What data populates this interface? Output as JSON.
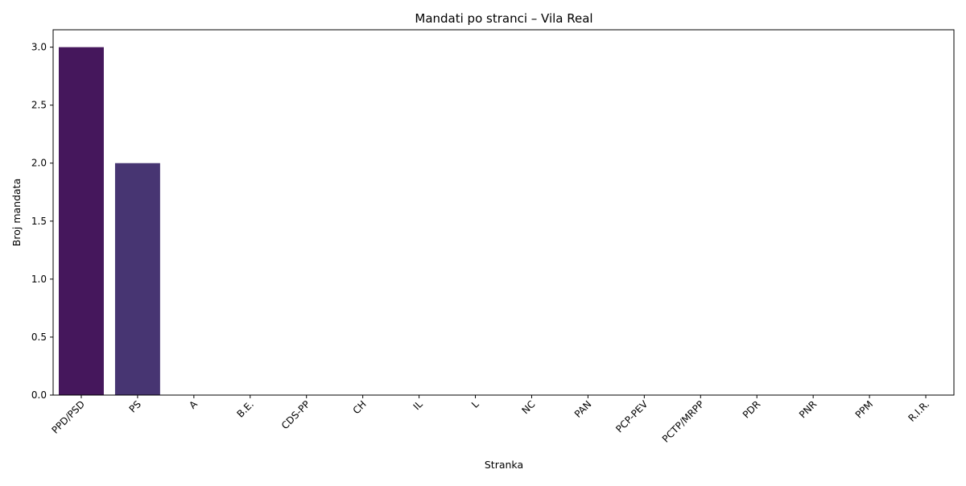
{
  "chart_data": {
    "type": "bar",
    "title": "Mandati po stranci – Vila Real",
    "xlabel": "Stranka",
    "ylabel": "Broj mandata",
    "categories": [
      "PPD/PSD",
      "PS",
      "A",
      "B.E.",
      "CDS-PP",
      "CH",
      "IL",
      "L",
      "NC",
      "PAN",
      "PCP-PEV",
      "PCTP/MRPP",
      "PDR",
      "PNR",
      "PPM",
      "R.I.R."
    ],
    "values": [
      3,
      2,
      0,
      0,
      0,
      0,
      0,
      0,
      0,
      0,
      0,
      0,
      0,
      0,
      0,
      0
    ],
    "ylim": [
      0,
      3.15
    ],
    "yticks": [
      "0.0",
      "0.5",
      "1.0",
      "1.5",
      "2.0",
      "2.5",
      "3.0"
    ],
    "grid": false,
    "colors": [
      "#45175c",
      "#473572",
      "#3f4a89",
      "#3e5d8c",
      "#38708d",
      "#30828e",
      "#2b918c",
      "#26a08a",
      "#2bb07e",
      "#3dbc73",
      "#62c960",
      "#8ad34a",
      "#b5dd2c",
      "#d6e21f",
      "#f2e52a",
      "#fde725"
    ]
  }
}
